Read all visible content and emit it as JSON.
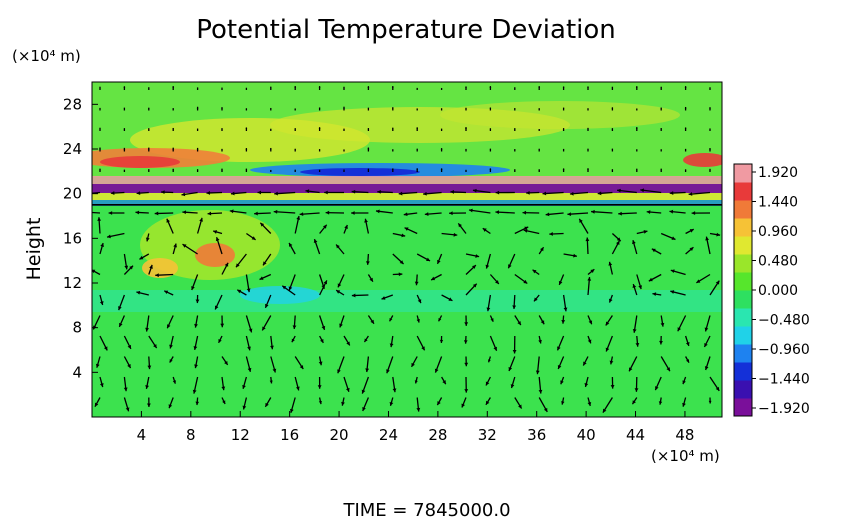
{
  "chart_data": {
    "type": "heatmap",
    "title": "Potential Temperature Deviation",
    "ylabel": "Height",
    "y_unit": "(×10⁴ m)",
    "x_unit": "(×10⁴ m)",
    "footer": "TIME  =  7845000.0",
    "xlim": [
      0,
      51
    ],
    "ylim": [
      0,
      30
    ],
    "x_ticks": [
      "4",
      "8",
      "12",
      "16",
      "20",
      "24",
      "28",
      "32",
      "36",
      "40",
      "44",
      "48"
    ],
    "y_ticks": [
      "4",
      "8",
      "12",
      "16",
      "20",
      "24",
      "28"
    ],
    "colorbar_labels": [
      "1.920",
      "1.440",
      "0.960",
      "0.480",
      "0.000",
      "−0.480",
      "−0.960",
      "−1.440",
      "−1.920"
    ],
    "colorbar_range": [
      -1.92,
      1.92
    ],
    "colorbar_colors": [
      "#7a0f9a",
      "#3a10b0",
      "#1430d8",
      "#1e82f0",
      "#20d2e8",
      "#2ae6b0",
      "#2ee060",
      "#56e62c",
      "#9ae62a",
      "#e0e830",
      "#f6c236",
      "#f07a38",
      "#e83a3a",
      "#f09aa2"
    ],
    "background_color": "#3ce24e",
    "reference_line_y": 19
  }
}
